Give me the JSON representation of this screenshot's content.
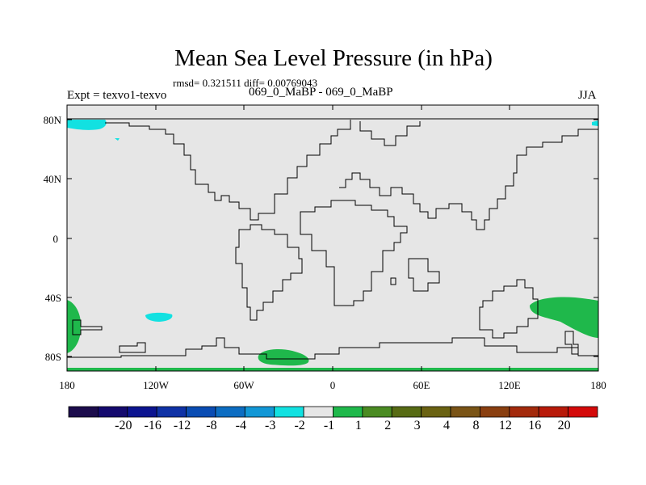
{
  "map": {
    "title": "Mean Sea Level Pressure (in hPa)",
    "stats": "rmsd= 0.321511 diff= 0.00769043",
    "experiment": "Expt = texvo1-texvo",
    "subtitle": "069_0_MaBP - 069_0_MaBP",
    "season": "JJA",
    "background_color": "#e6e6e6",
    "coastline_color": "#000000",
    "lat_ticks": [
      "80N",
      "40N",
      "0",
      "40S",
      "80S"
    ],
    "lon_ticks": [
      "180",
      "120W",
      "60W",
      "0",
      "60E",
      "120E",
      "180"
    ]
  },
  "colorbar": {
    "colors": [
      "#1c0c4c",
      "#140a6e",
      "#0c1490",
      "#0f32a6",
      "#0a4cb3",
      "#0c6dc2",
      "#1297d6",
      "#12e1e1",
      "#e6e6e6",
      "#1fb84b",
      "#4a8b22",
      "#576b14",
      "#6a6212",
      "#7a5416",
      "#8a3f10",
      "#a32a0c",
      "#b81a0a",
      "#d40a0a"
    ],
    "labels": [
      "-20",
      "-16",
      "-12",
      "-8",
      "-4",
      "-3",
      "-2",
      "-1",
      "1",
      "2",
      "3",
      "4",
      "8",
      "12",
      "16",
      "20"
    ]
  }
}
